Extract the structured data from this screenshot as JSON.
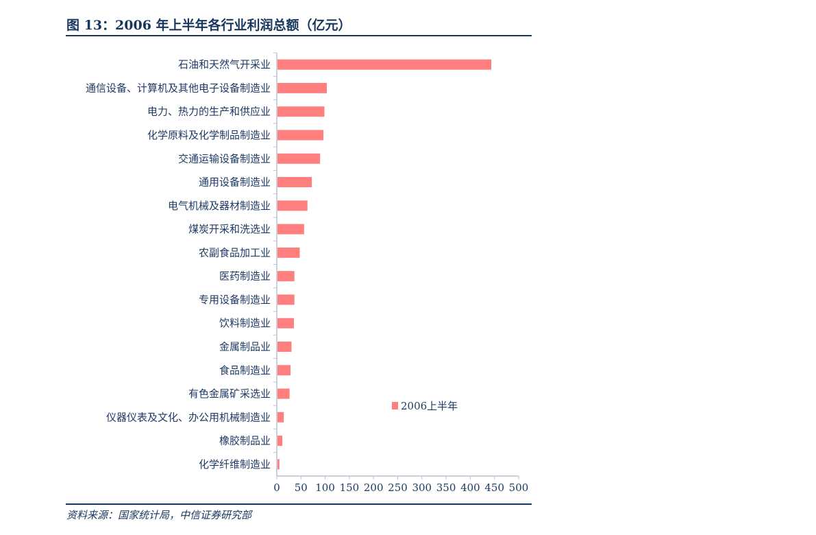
{
  "title": "图 13：2006 年上半年各行业利润总额（亿元）",
  "source": "资料来源：国家统计局，中信证券研究部",
  "colors": {
    "bar": "#FF7F7F",
    "text": "#1F3A64",
    "rule": "#17365D"
  },
  "chart_data": {
    "type": "bar",
    "orientation": "horizontal",
    "title": "2006 年上半年各行业利润总额（亿元）",
    "categories": [
      "石油和天然气开采业",
      "通信设备、计算机及其他电子设备制造业",
      "电力、热力的生产和供应业",
      "化学原料及化学制品制造业",
      "交通运输设备制造业",
      "通用设备制造业",
      "电气机械及器材制造业",
      "煤炭开采和洗选业",
      "农副食品加工业",
      "医药制造业",
      "专用设备制造业",
      "饮料制造业",
      "金属制品业",
      "食品制造业",
      "有色金属矿采选业",
      "仪器仪表及文化、办公用机械制造业",
      "橡胶制品业",
      "化学纤维制造业"
    ],
    "series": [
      {
        "name": "2006上半年",
        "values": [
          442,
          102,
          97,
          95,
          88,
          71,
          62,
          55,
          46,
          35,
          35,
          34,
          29,
          27,
          25,
          13,
          10,
          4
        ]
      }
    ],
    "xlim": [
      0,
      500
    ],
    "xticks": [
      "0",
      "50",
      "100",
      "150",
      "200",
      "250",
      "300",
      "350",
      "400",
      "450",
      "500"
    ],
    "legend": {
      "label": "2006上半年",
      "placement": "center-right"
    },
    "grid": false
  }
}
